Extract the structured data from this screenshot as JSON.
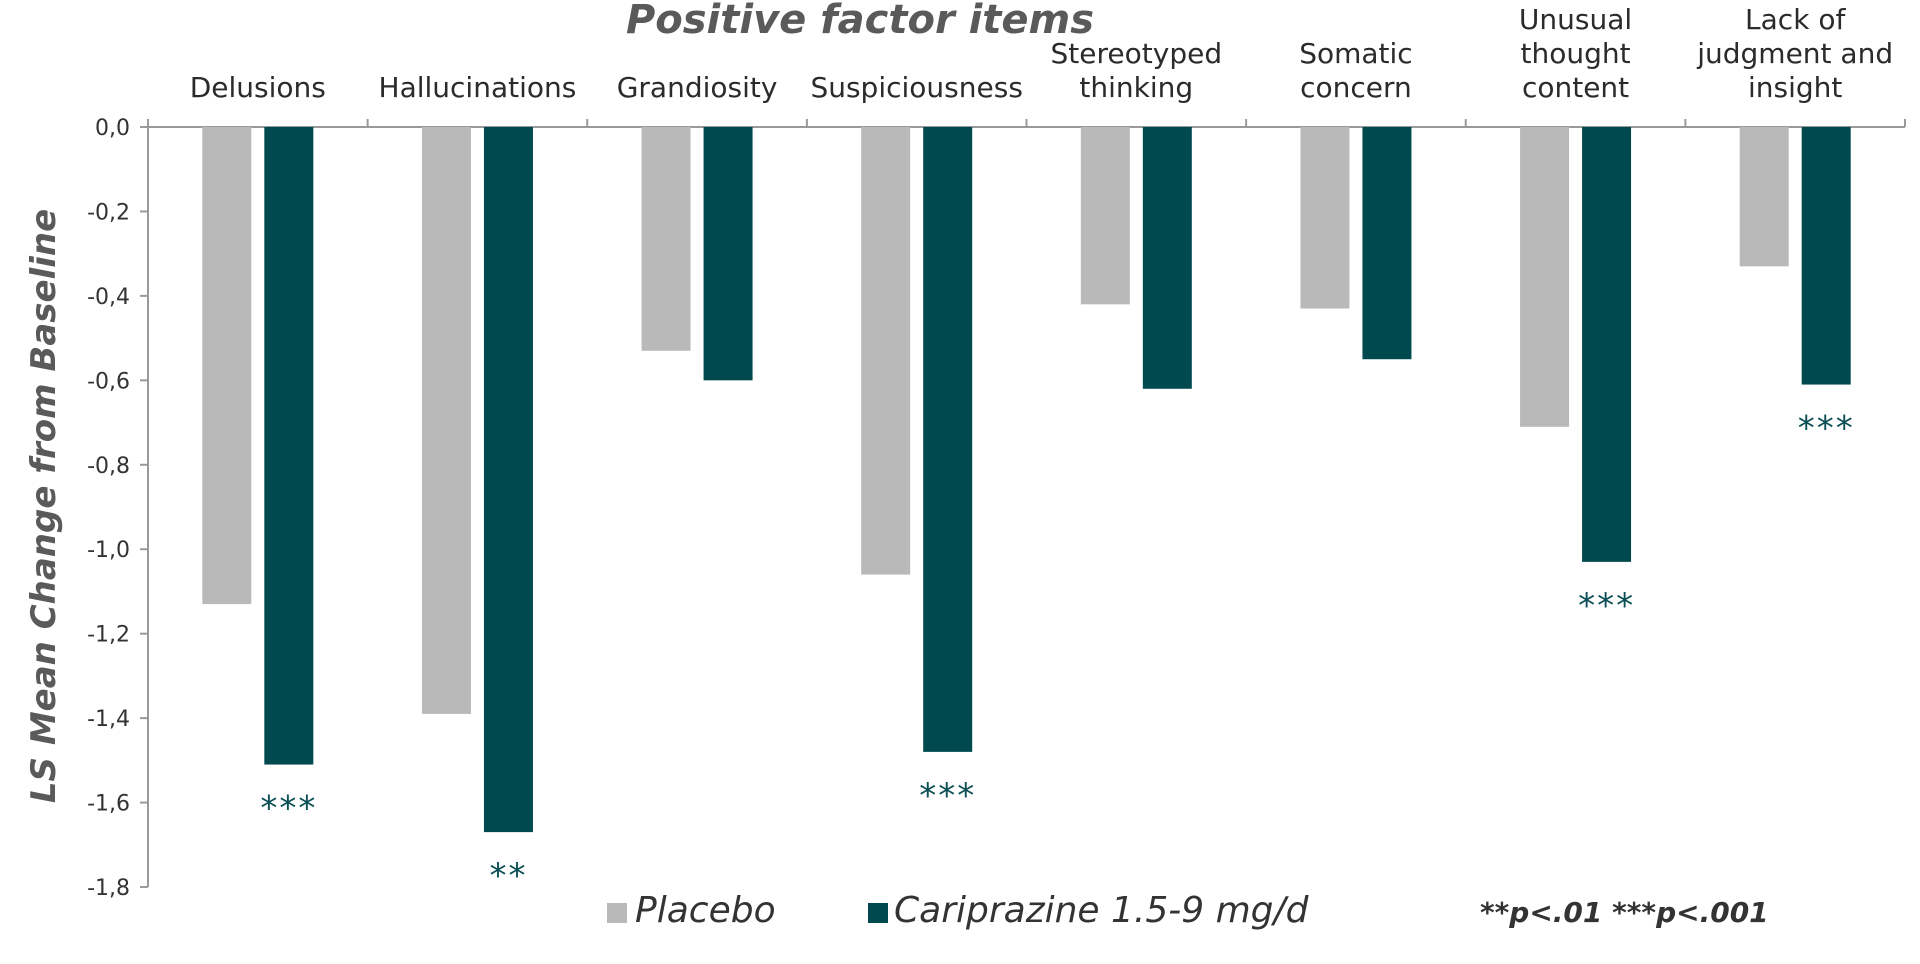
{
  "chart_data": {
    "type": "bar",
    "title": "Positive factor items",
    "ylabel": "LS Mean Change from Baseline",
    "ylim": [
      -1.8,
      0
    ],
    "yticks": [
      "0,0",
      "-0,2",
      "-0,4",
      "-0,6",
      "-0,8",
      "-1,0",
      "-1,2",
      "-1,4",
      "-1,6",
      "-1,8"
    ],
    "ytick_values": [
      0,
      -0.2,
      -0.4,
      -0.6,
      -0.8,
      -1.0,
      -1.2,
      -1.4,
      -1.6,
      -1.8
    ],
    "categories": [
      [
        "Delusions"
      ],
      [
        "Hallucinations"
      ],
      [
        "Grandiosity"
      ],
      [
        "Suspiciousness"
      ],
      [
        "Stereotyped",
        "thinking"
      ],
      [
        "Somatic",
        "concern"
      ],
      [
        "Unusual",
        "thought",
        "content"
      ],
      [
        "Lack of",
        "judgment and",
        "insight"
      ]
    ],
    "series": [
      {
        "name": "Placebo",
        "color": "#b9b9b9",
        "values": [
          -1.13,
          -1.39,
          -0.53,
          -1.06,
          -0.42,
          -0.43,
          -0.71,
          -0.33
        ]
      },
      {
        "name": "Cariprazine 1.5-9 mg/d",
        "color": "#004a4f",
        "values": [
          -1.51,
          -1.67,
          -0.6,
          -1.48,
          -0.62,
          -0.55,
          -1.03,
          -0.61
        ]
      }
    ],
    "significance": [
      "***",
      "**",
      "",
      "***",
      "",
      "",
      "***",
      "***"
    ],
    "significance_color": "#0b4f55",
    "legend_position": "bottom",
    "footnote": "**p<.01 ***p<.001",
    "grid": false
  }
}
